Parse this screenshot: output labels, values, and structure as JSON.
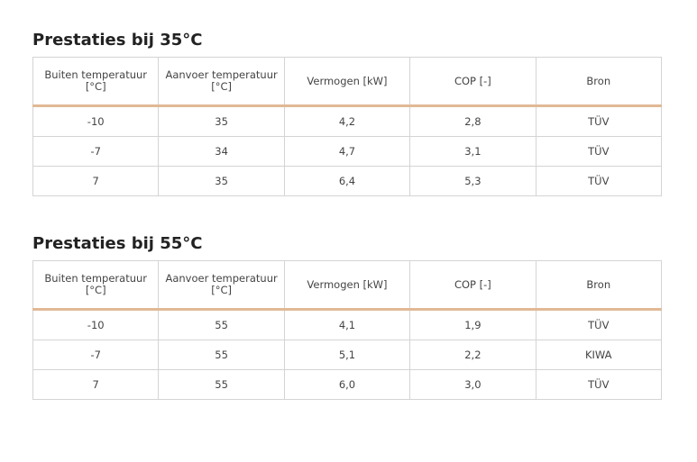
{
  "sections": [
    {
      "title": "Prestaties bij 35°C",
      "table": {
        "headers": [
          "Buiten temperatuur [°C]",
          "Aanvoer temperatuur [°C]",
          "Vermogen [kW]",
          "COP [-]",
          "Bron"
        ],
        "rows": [
          [
            "-10",
            "35",
            "4,2",
            "2,8",
            "TÜV"
          ],
          [
            "-7",
            "34",
            "4,7",
            "3,1",
            "TÜV"
          ],
          [
            "7",
            "35",
            "6,4",
            "5,3",
            "TÜV"
          ]
        ]
      }
    },
    {
      "title": "Prestaties bij 55°C",
      "table": {
        "headers": [
          "Buiten temperatuur [°C]",
          "Aanvoer temperatuur [°C]",
          "Vermogen [kW]",
          "COP [-]",
          "Bron"
        ],
        "rows": [
          [
            "-10",
            "55",
            "4,1",
            "1,9",
            "TÜV"
          ],
          [
            "-7",
            "55",
            "5,1",
            "2,2",
            "KIWA"
          ],
          [
            "7",
            "55",
            "6,0",
            "3,0",
            "TÜV"
          ]
        ]
      }
    }
  ]
}
